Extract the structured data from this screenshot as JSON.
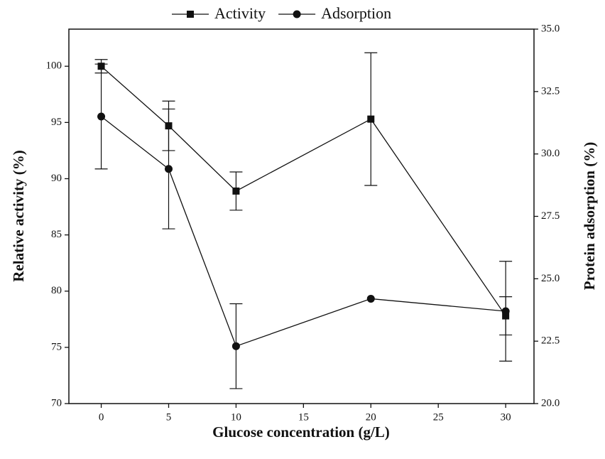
{
  "chart_data": {
    "type": "line",
    "x_label": "Glucose concentration (g/L)",
    "y_label": "Relative activity (%)",
    "y2_label": "Protein adsorption (%)",
    "x": [
      0,
      5,
      10,
      20,
      30
    ],
    "series": [
      {
        "name": "Activity",
        "color": "#111111",
        "marker": "square",
        "axis": "y",
        "values": [
          100,
          94.7,
          88.9,
          95.3,
          77.8
        ],
        "errors": [
          0.6,
          2.2,
          1.7,
          5.9,
          1.7
        ]
      },
      {
        "name": "Adsorption",
        "color": "#111111",
        "marker": "circle",
        "axis": "y2",
        "values": [
          31.5,
          29.4,
          22.3,
          24.2,
          23.7
        ],
        "errors": [
          2.1,
          2.4,
          1.7,
          null,
          2.0
        ]
      }
    ],
    "xlim": [
      -2.4,
      32.1
    ],
    "xticks": [
      0,
      5,
      10,
      15,
      20,
      25,
      30
    ],
    "ylim": [
      70,
      103.3
    ],
    "yticks": [
      70,
      75,
      80,
      85,
      90,
      95,
      100
    ],
    "y2lim": [
      20,
      35
    ],
    "y2ticks": [
      {
        "value": 20,
        "label": "20.0"
      },
      22.5,
      {
        "value": 25,
        "label": "25.0"
      },
      27.5,
      {
        "value": 30,
        "label": "30.0"
      },
      32.5,
      {
        "value": 35,
        "label": "35.0"
      }
    ],
    "legend": "top"
  }
}
